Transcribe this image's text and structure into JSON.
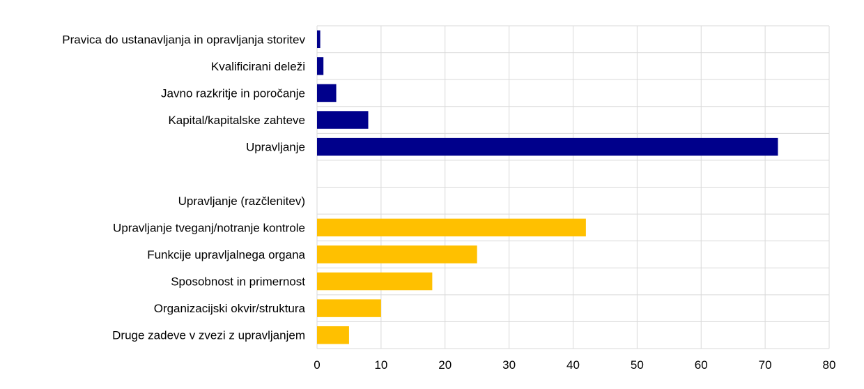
{
  "chart_data": {
    "type": "bar",
    "orientation": "horizontal",
    "categories": [
      "Pravica do ustanavljanja in opravljanja storitev",
      "Kvalificirani deleži",
      "Javno razkritje in poročanje",
      "Kapital/kapitalske zahteve",
      "Upravljanje",
      "",
      "Upravljanje (razčlenitev)",
      "Upravljanje tveganj/notranje kontrole",
      "Funkcije upravljalnega organa",
      "Sposobnost in primernost",
      "Organizacijski okvir/struktura",
      "Druge zadeve v zvezi z upravljanjem"
    ],
    "values": [
      0.5,
      1,
      3,
      8,
      72,
      null,
      null,
      42,
      25,
      18,
      10,
      5
    ],
    "bar_colors": [
      "#00008B",
      "#00008B",
      "#00008B",
      "#00008B",
      "#00008B",
      null,
      null,
      "#FFC000",
      "#FFC000",
      "#FFC000",
      "#FFC000",
      "#FFC000"
    ],
    "xlim": [
      0,
      80
    ],
    "xticks": [
      0,
      10,
      20,
      30,
      40,
      50,
      60,
      70,
      80
    ],
    "grid": true,
    "title": "",
    "xlabel": "",
    "ylabel": ""
  }
}
